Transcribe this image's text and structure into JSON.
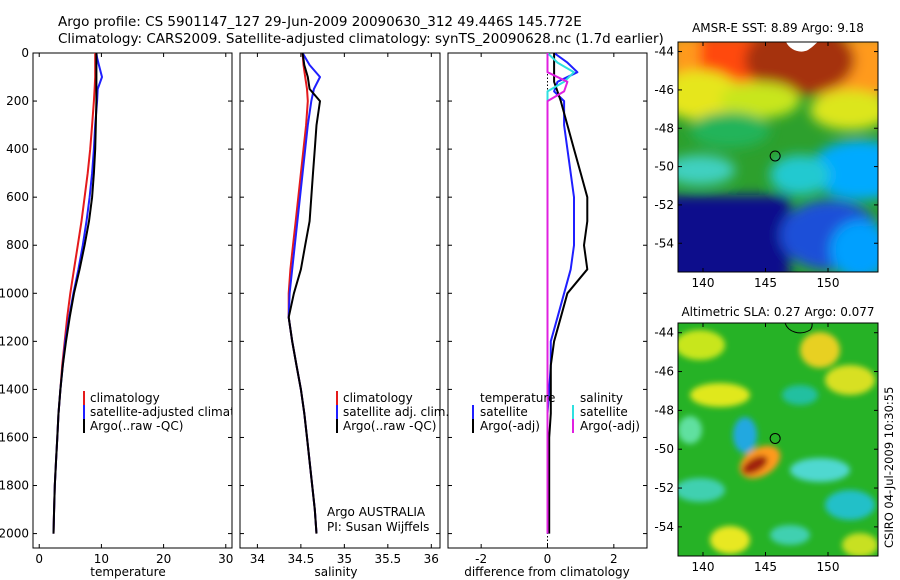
{
  "header": {
    "line1": "Argo profile: CS 5901147_127 29-Jun-2009 20090630_312 49.446S 145.772E",
    "line2": "Climatology: CARS2009. Satellite-adjusted climatology: synTS_20090628.nc (1.7d earlier)"
  },
  "footer": {
    "program": "Argo AUSTRALIA",
    "pi": "PI: Susan Wijffels",
    "credit": "CSIRO 04-Jul-2009 10:30:55"
  },
  "colors": {
    "climatology": "#e41a1c",
    "satellite": "#1f1fff",
    "argo": "#000000",
    "satellite_salinity": "#2ee0e0",
    "argo_salinity_adj": "#e020e0",
    "zero_line": "#000000"
  },
  "chart_data": [
    {
      "type": "line",
      "xlabel": "temperature",
      "ylabel": "",
      "xlim": [
        -1,
        31
      ],
      "ylim": [
        2060,
        0
      ],
      "xticks": [
        0,
        10,
        20,
        30
      ],
      "yticks": [
        0,
        200,
        400,
        600,
        800,
        1000,
        1200,
        1400,
        1600,
        1800,
        2000
      ],
      "y": [
        0,
        20,
        50,
        100,
        150,
        200,
        300,
        400,
        500,
        600,
        700,
        800,
        900,
        1000,
        1100,
        1200,
        1300,
        1400,
        1500,
        1600,
        1700,
        1800,
        1900,
        2000
      ],
      "series": [
        {
          "name": "climatology",
          "color": "#e41a1c",
          "values": [
            9.0,
            9.0,
            9.0,
            9.0,
            8.9,
            8.8,
            8.5,
            8.2,
            7.8,
            7.3,
            6.8,
            6.2,
            5.6,
            5.0,
            4.5,
            4.1,
            3.7,
            3.4,
            3.1,
            2.9,
            2.7,
            2.5,
            2.4,
            2.3
          ]
        },
        {
          "name": "satellite-adjusted climatology",
          "color": "#1f1fff",
          "values": [
            9.2,
            9.3,
            9.6,
            10.1,
            9.4,
            9.3,
            9.0,
            8.8,
            8.5,
            8.1,
            7.6,
            7.0,
            6.3,
            5.5,
            4.8,
            4.2,
            3.8,
            3.4,
            3.1,
            2.9,
            2.7,
            2.5,
            2.4,
            2.3
          ]
        },
        {
          "name": "Argo(..raw -QC)",
          "color": "#000000",
          "values": [
            9.2,
            9.2,
            9.2,
            9.2,
            9.2,
            9.2,
            9.1,
            9.0,
            8.8,
            8.5,
            8.0,
            7.3,
            6.5,
            5.6,
            4.9,
            4.3,
            3.8,
            3.4,
            3.1,
            2.9,
            2.7,
            2.5,
            2.4,
            2.3
          ]
        }
      ],
      "legend": {
        "placement": "lower-right",
        "entries": [
          "climatology",
          "satellite-adjusted climatology",
          "Argo(..raw -QC)"
        ]
      }
    },
    {
      "type": "line",
      "xlabel": "salinity",
      "ylabel": "",
      "xlim": [
        33.8,
        36.1
      ],
      "ylim": [
        2060,
        0
      ],
      "xticks": [
        34,
        34.5,
        35,
        35.5,
        36
      ],
      "y": [
        0,
        50,
        100,
        150,
        200,
        300,
        400,
        500,
        600,
        700,
        800,
        900,
        1000,
        1100,
        1200,
        1300,
        1400,
        1500,
        1600,
        1700,
        1800,
        1900,
        2000
      ],
      "series": [
        {
          "name": "climatology",
          "color": "#e41a1c",
          "values": [
            34.52,
            34.53,
            34.55,
            34.57,
            34.58,
            34.56,
            34.53,
            34.5,
            34.47,
            34.44,
            34.41,
            34.38,
            34.36,
            34.36,
            34.4,
            34.45,
            34.5,
            34.54,
            34.57,
            34.6,
            34.63,
            34.66,
            34.68
          ]
        },
        {
          "name": "satellite adj. clim.",
          "color": "#1f1fff",
          "values": [
            34.52,
            34.6,
            34.72,
            34.65,
            34.62,
            34.58,
            34.55,
            34.52,
            34.49,
            34.46,
            34.43,
            34.4,
            34.37,
            34.36,
            34.4,
            34.45,
            34.5,
            34.54,
            34.57,
            34.6,
            34.63,
            34.66,
            34.68
          ]
        },
        {
          "name": "Argo(..raw -QC)",
          "color": "#000000",
          "values": [
            34.52,
            34.54,
            34.58,
            34.6,
            34.72,
            34.68,
            34.66,
            34.64,
            34.62,
            34.6,
            34.55,
            34.5,
            34.42,
            34.36,
            34.4,
            34.45,
            34.5,
            34.54,
            34.57,
            34.6,
            34.63,
            34.66,
            34.68
          ]
        }
      ],
      "legend": {
        "placement": "lower-right",
        "entries": [
          "climatology",
          "satellite adj. clim.",
          "Argo(..raw -QC)"
        ]
      }
    },
    {
      "type": "line",
      "xlabel": "difference from climatology",
      "ylabel": "",
      "xlim": [
        -3,
        3
      ],
      "ylim": [
        2060,
        0
      ],
      "xticks": [
        -2,
        0,
        2
      ],
      "y": [
        0,
        40,
        80,
        120,
        160,
        200,
        300,
        400,
        500,
        600,
        700,
        800,
        900,
        1000,
        1100,
        1200,
        1300,
        1400,
        1500,
        1600,
        1700,
        1800,
        1900,
        2000
      ],
      "series": [
        {
          "name": "satellite",
          "group": "temperature",
          "color": "#1f1fff",
          "values": [
            0.2,
            0.6,
            0.9,
            0.3,
            0.2,
            0.5,
            0.5,
            0.6,
            0.7,
            0.8,
            0.8,
            0.8,
            0.7,
            0.5,
            0.3,
            0.1,
            0.1,
            0.05,
            0.0,
            0.0,
            0.0,
            0.0,
            0.0,
            0.0
          ]
        },
        {
          "name": "Argo(-adj)",
          "group": "temperature",
          "color": "#000000",
          "values": [
            0.2,
            0.2,
            0.2,
            0.2,
            0.3,
            0.4,
            0.6,
            0.8,
            1.0,
            1.2,
            1.2,
            1.1,
            1.2,
            0.6,
            0.4,
            0.2,
            0.1,
            0.1,
            0.1,
            0.05,
            0.05,
            0.05,
            0.05,
            0.05
          ]
        },
        {
          "name": "satellite",
          "group": "salinity",
          "color": "#2ee0e0",
          "values": [
            0.0,
            0.3,
            0.8,
            0.5,
            0.0,
            0.0,
            0.0,
            0.0,
            0.0,
            0.0,
            0.0,
            0.0,
            0.0,
            0.0,
            0.0,
            0.0,
            0.0,
            0.0,
            0.0,
            0.0,
            0.0,
            0.0,
            0.0,
            0.0
          ]
        },
        {
          "name": "Argo(-adj)",
          "group": "salinity",
          "color": "#e020e0",
          "values": [
            0.0,
            0.0,
            0.0,
            0.6,
            0.5,
            0.0,
            0.0,
            0.0,
            0.0,
            0.0,
            0.0,
            0.0,
            0.0,
            0.0,
            0.0,
            0.0,
            0.0,
            0.0,
            0.0,
            0.0,
            0.0,
            0.0,
            0.0,
            0.0
          ]
        }
      ],
      "legend": {
        "placement": "lower-right",
        "groups": [
          "temperature",
          "salinity"
        ],
        "entries": [
          "satellite",
          "Argo(-adj)",
          "satellite",
          "Argo(-adj)"
        ]
      }
    },
    {
      "type": "heatmap",
      "title": "AMSR-E SST: 8.89 Argo: 9.18",
      "xlim": [
        138,
        154
      ],
      "ylim": [
        -55.5,
        -43.5
      ],
      "xticks": [
        140,
        145,
        150
      ],
      "yticks": [
        -44,
        -46,
        -48,
        -50,
        -52,
        -54
      ],
      "marker": {
        "lon": 145.772,
        "lat": -49.446
      }
    },
    {
      "type": "heatmap",
      "title": "Altimetric SLA: 0.27 Argo: 0.077",
      "xlim": [
        138,
        154
      ],
      "ylim": [
        -55.5,
        -43.5
      ],
      "xticks": [
        140,
        145,
        150
      ],
      "yticks": [
        -44,
        -46,
        -48,
        -50,
        -52,
        -54
      ],
      "marker": {
        "lon": 145.772,
        "lat": -49.446
      }
    }
  ]
}
